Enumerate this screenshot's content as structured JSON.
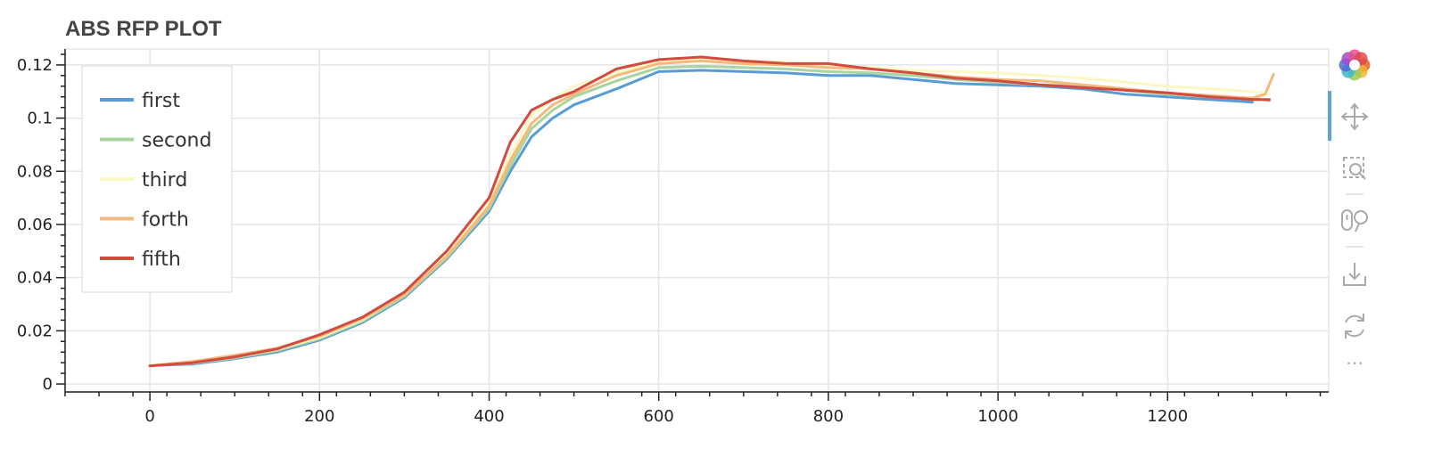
{
  "chart_data": {
    "type": "line",
    "title": "ABS RFP PLOT",
    "xlabel": "",
    "ylabel": "",
    "xlim": [
      -100,
      1390
    ],
    "ylim": [
      -0.003,
      0.126
    ],
    "x_ticks": [
      0,
      200,
      400,
      600,
      800,
      1000,
      1200
    ],
    "x_tick_labels": [
      "0",
      "200",
      "400",
      "600",
      "800",
      "1000",
      "1200"
    ],
    "y_ticks": [
      0,
      0.02,
      0.04,
      0.06,
      0.08,
      0.1,
      0.12
    ],
    "y_tick_labels": [
      "0",
      "0.02",
      "0.04",
      "0.06",
      "0.08",
      "0.1",
      "0.12"
    ],
    "grid": true,
    "legend_position": "top-left",
    "series": [
      {
        "name": "first",
        "color": "#5b9bd5",
        "x": [
          0,
          50,
          100,
          150,
          200,
          250,
          300,
          350,
          400,
          425,
          450,
          475,
          500,
          550,
          600,
          650,
          700,
          750,
          800,
          850,
          900,
          950,
          1000,
          1050,
          1100,
          1150,
          1200,
          1250,
          1300
        ],
        "y": [
          0.007,
          0.0075,
          0.0095,
          0.012,
          0.0165,
          0.023,
          0.0325,
          0.047,
          0.065,
          0.08,
          0.093,
          0.1,
          0.105,
          0.111,
          0.1175,
          0.118,
          0.1175,
          0.117,
          0.116,
          0.116,
          0.1145,
          0.113,
          0.1125,
          0.112,
          0.111,
          0.109,
          0.108,
          0.107,
          0.106
        ]
      },
      {
        "name": "second",
        "color": "#a8d5a0",
        "x": [
          0,
          50,
          100,
          150,
          200,
          250,
          300,
          350,
          400,
          425,
          450,
          475,
          500,
          550,
          600,
          650,
          700,
          750,
          800,
          850,
          900,
          950,
          1000,
          1050,
          1100,
          1150,
          1200,
          1250,
          1300,
          1320
        ],
        "y": [
          0.007,
          0.0078,
          0.0098,
          0.0125,
          0.017,
          0.0235,
          0.033,
          0.0475,
          0.066,
          0.082,
          0.096,
          0.103,
          0.108,
          0.114,
          0.119,
          0.1195,
          0.119,
          0.1185,
          0.1175,
          0.117,
          0.116,
          0.1145,
          0.1135,
          0.1125,
          0.112,
          0.1105,
          0.109,
          0.108,
          0.1075,
          0.1065
        ]
      },
      {
        "name": "third",
        "color": "#fdf7c3",
        "x": [
          0,
          50,
          100,
          150,
          200,
          250,
          300,
          350,
          400,
          425,
          450,
          475,
          500,
          550,
          600,
          650,
          700,
          750,
          800,
          850,
          900,
          950,
          1000,
          1050,
          1100,
          1150,
          1200,
          1250,
          1300,
          1320
        ],
        "y": [
          0.007,
          0.0082,
          0.0102,
          0.013,
          0.0175,
          0.024,
          0.034,
          0.049,
          0.069,
          0.086,
          0.101,
          0.107,
          0.112,
          0.117,
          0.1215,
          0.1225,
          0.1215,
          0.121,
          0.1195,
          0.119,
          0.118,
          0.1175,
          0.117,
          0.116,
          0.115,
          0.1135,
          0.112,
          0.111,
          0.11,
          0.109
        ]
      },
      {
        "name": "forth",
        "color": "#f4b97d",
        "x": [
          0,
          50,
          100,
          150,
          200,
          250,
          300,
          350,
          400,
          425,
          450,
          475,
          500,
          550,
          600,
          650,
          700,
          750,
          800,
          850,
          900,
          950,
          1000,
          1050,
          1100,
          1150,
          1200,
          1250,
          1300,
          1315,
          1325
        ],
        "y": [
          0.0068,
          0.0085,
          0.0108,
          0.0135,
          0.018,
          0.0245,
          0.0335,
          0.048,
          0.067,
          0.084,
          0.098,
          0.105,
          0.109,
          0.116,
          0.1205,
          0.1215,
          0.1205,
          0.12,
          0.119,
          0.1185,
          0.117,
          0.1155,
          0.1145,
          0.114,
          0.1125,
          0.111,
          0.1095,
          0.1085,
          0.1075,
          0.109,
          0.1165
        ]
      },
      {
        "name": "fifth",
        "color": "#d24b3e",
        "x": [
          0,
          50,
          100,
          150,
          200,
          250,
          300,
          350,
          400,
          425,
          450,
          475,
          500,
          550,
          600,
          650,
          700,
          750,
          800,
          850,
          900,
          950,
          1000,
          1050,
          1100,
          1150,
          1200,
          1250,
          1300,
          1320
        ],
        "y": [
          0.0068,
          0.008,
          0.0102,
          0.0132,
          0.0185,
          0.025,
          0.0345,
          0.05,
          0.07,
          0.091,
          0.103,
          0.107,
          0.11,
          0.1185,
          0.122,
          0.123,
          0.1215,
          0.1205,
          0.1205,
          0.1185,
          0.117,
          0.115,
          0.114,
          0.1125,
          0.1115,
          0.1105,
          0.1095,
          0.108,
          0.107,
          0.107
        ]
      }
    ]
  },
  "toolbar": {
    "tools": [
      "bokeh-logo-icon",
      "pan-icon",
      "box-zoom-icon",
      "wheel-zoom-icon",
      "save-icon",
      "reset-icon",
      "more-icon"
    ],
    "more_label": "⋯"
  },
  "colors": {
    "grid": "#e5e5e5",
    "axis": "#222222",
    "active_tool": "#5aa5d6"
  }
}
